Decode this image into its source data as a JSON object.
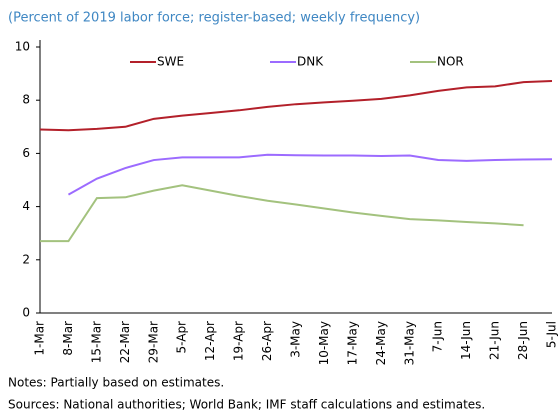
{
  "chart_data": {
    "type": "line",
    "subtitle": "(Percent of 2019 labor force; register-based; weekly frequency)",
    "categories": [
      "1-Mar",
      "8-Mar",
      "15-Mar",
      "22-Mar",
      "29-Mar",
      "5-Apr",
      "12-Apr",
      "19-Apr",
      "26-Apr",
      "3-May",
      "10-May",
      "17-May",
      "24-May",
      "31-May",
      "7-Jun",
      "14-Jun",
      "21-Jun",
      "28-Jun",
      "5-Jul"
    ],
    "series": [
      {
        "name": "SWE",
        "color": "#b3202a",
        "values": [
          6.9,
          6.87,
          6.92,
          7.0,
          7.3,
          7.42,
          7.52,
          7.62,
          7.75,
          7.85,
          7.92,
          7.98,
          8.05,
          8.18,
          8.35,
          8.48,
          8.52,
          8.68,
          8.72
        ]
      },
      {
        "name": "DNK",
        "color": "#9c6bff",
        "values": [
          null,
          4.45,
          5.05,
          5.45,
          5.75,
          5.85,
          5.85,
          5.85,
          5.95,
          5.93,
          5.92,
          5.92,
          5.9,
          5.92,
          5.75,
          5.72,
          5.75,
          5.77,
          5.78
        ]
      },
      {
        "name": "NOR",
        "color": "#a3c27e",
        "values": [
          2.7,
          2.7,
          4.32,
          4.35,
          4.6,
          4.8,
          4.6,
          4.4,
          4.22,
          4.08,
          3.93,
          3.78,
          3.65,
          3.53,
          3.48,
          3.42,
          3.37,
          3.3,
          null
        ]
      }
    ],
    "ylim": [
      0,
      10
    ],
    "yticks": [
      0,
      2,
      4,
      6,
      8,
      10
    ],
    "grid": false,
    "notes": "Notes: Partially based on estimates.",
    "sources": "Sources: National authorities; World Bank; IMF staff calculations and estimates."
  }
}
